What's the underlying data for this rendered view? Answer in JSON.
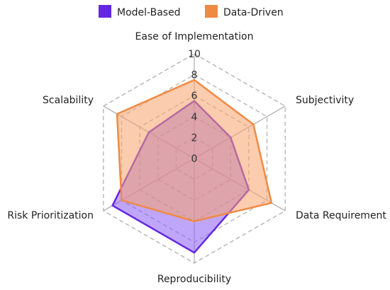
{
  "chart_data": {
    "type": "radar",
    "axes": [
      "Ease of Implementation",
      "Subjectivity",
      "Data Requirement",
      "Reproducibility",
      "Risk Prioritization",
      "Scalability"
    ],
    "rmin": 0,
    "rmax": 10,
    "ticks": [
      "0",
      "2",
      "4",
      "6",
      "8",
      "10"
    ],
    "grid": "dashed",
    "legend_position": "top",
    "series": [
      {
        "name": "Model-Based",
        "values": [
          5.5,
          4,
          6,
          9,
          9,
          5
        ],
        "stroke": "#6427e0",
        "fill": "#8b5cf6"
      },
      {
        "name": "Data-Driven",
        "values": [
          7.5,
          6.5,
          8.5,
          6,
          8,
          8.5
        ],
        "stroke": "#f08a43",
        "fill": "#f7a26a"
      }
    ]
  }
}
